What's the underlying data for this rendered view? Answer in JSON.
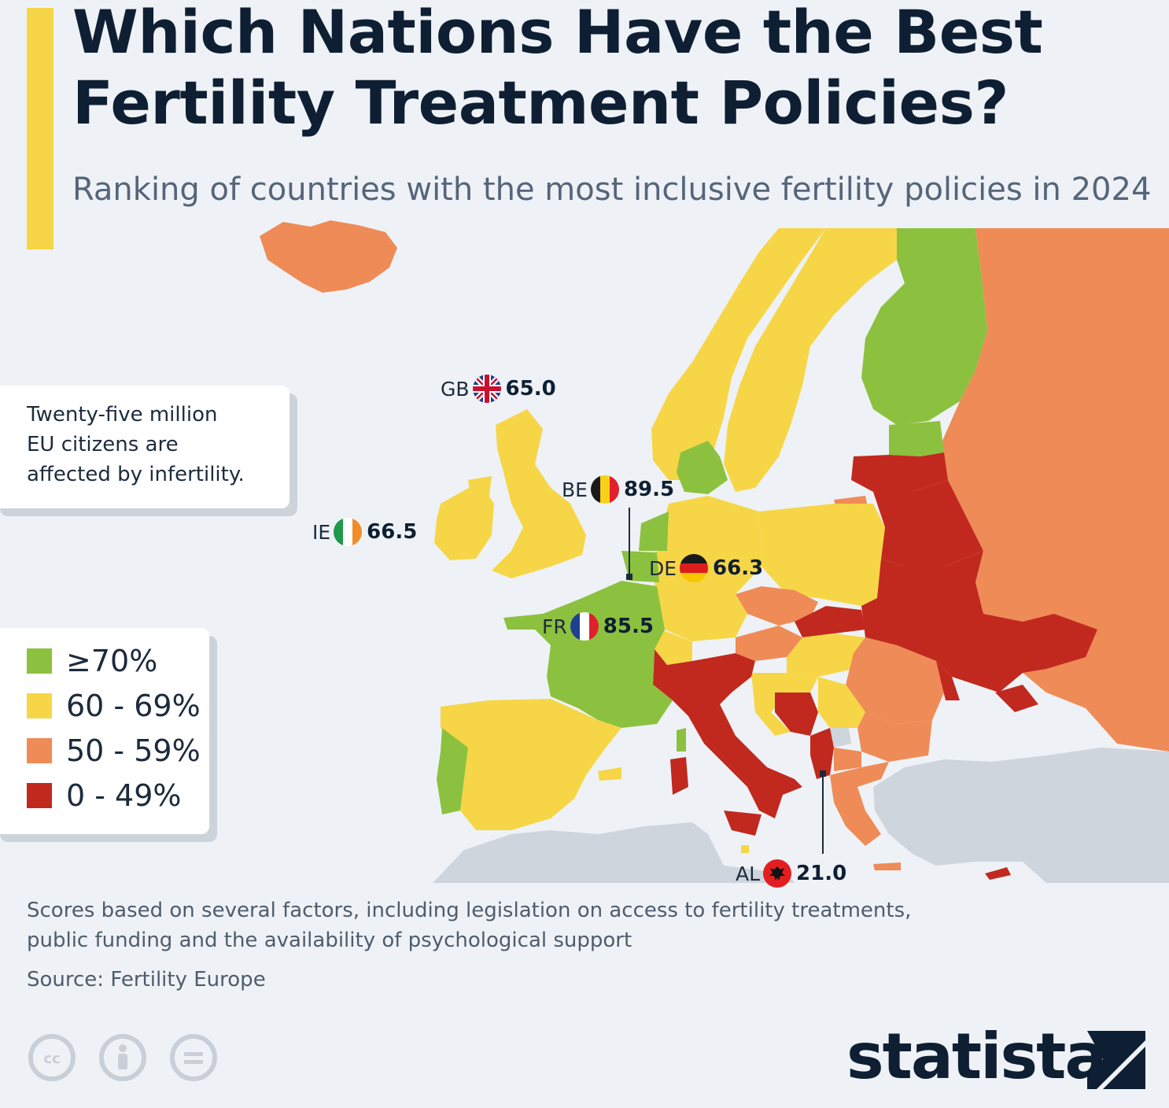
{
  "title": "Which Nations Have the Best Fertility Treatment Policies?",
  "subtitle": "Ranking of countries with the most inclusive fertility policies in 2024",
  "info_box": {
    "line1": "Twenty-five million",
    "line2": "EU citizens are",
    "line3": "affected by infertility."
  },
  "legend": [
    {
      "label": "≥70%",
      "color": "#8cc13f"
    },
    {
      "label": "60 - 69%",
      "color": "#f6d646"
    },
    {
      "label": "50 - 59%",
      "color": "#ef8b57"
    },
    {
      "label": "0 - 49%",
      "color": "#c1291f"
    }
  ],
  "no_data_color": "#cfd5dc",
  "countries": {
    "gb": {
      "code": "GB",
      "score": "65.0",
      "flag_icon": "union-jack-flag-icon"
    },
    "be": {
      "code": "BE",
      "score": "89.5",
      "flag_icon": "belgium-flag-icon"
    },
    "ie": {
      "code": "IE",
      "score": "66.5",
      "flag_icon": "ireland-flag-icon"
    },
    "de": {
      "code": "DE",
      "score": "66.3",
      "flag_icon": "germany-flag-icon"
    },
    "fr": {
      "code": "FR",
      "score": "85.5",
      "flag_icon": "france-flag-icon"
    },
    "al": {
      "code": "AL",
      "score": "21.0",
      "flag_icon": "albania-flag-icon"
    }
  },
  "footnote": {
    "line1": "Scores based on several factors, including legislation on access to fertility treatments,",
    "line2": "public funding and the availability of psychological support"
  },
  "source": "Source: Fertility Europe",
  "license_icons": [
    "creative-commons-icon",
    "attribution-icon",
    "no-derivatives-icon"
  ],
  "brand": "statista"
}
